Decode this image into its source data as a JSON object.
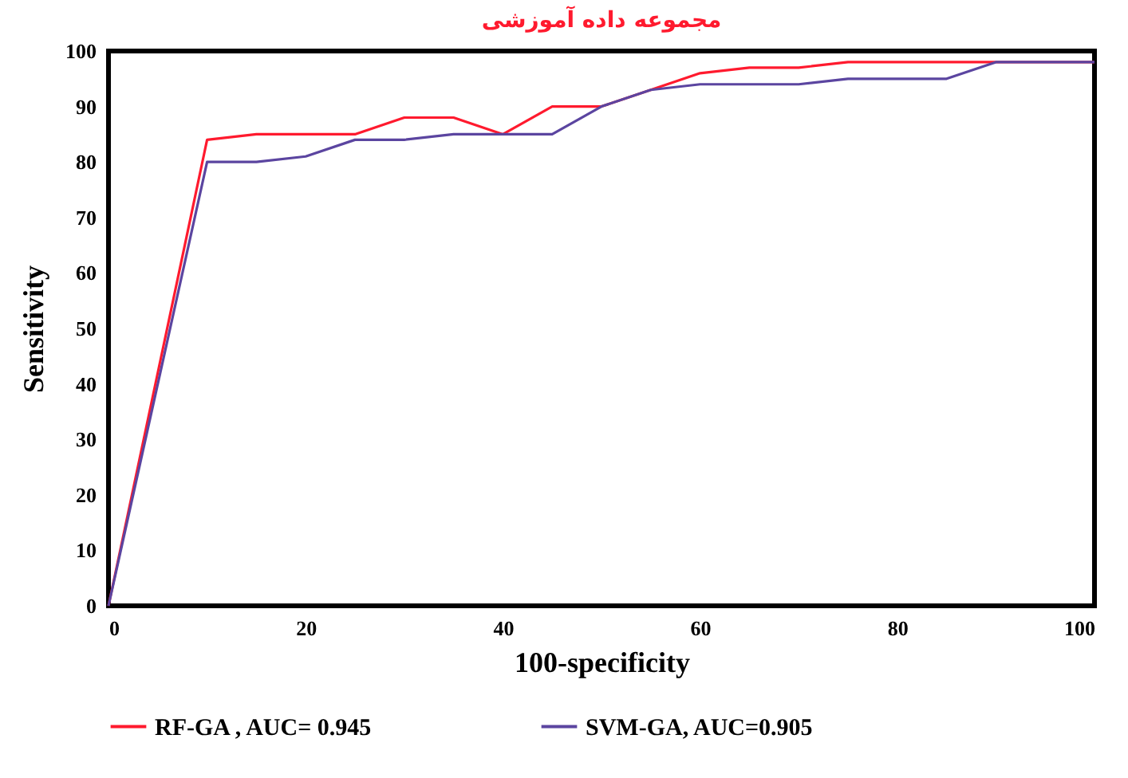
{
  "chart_data": {
    "type": "line",
    "title": "مجموعه داده آموزشی",
    "xlabel": "100-specificity",
    "ylabel": "Sensitivity",
    "x": [
      0,
      10,
      15,
      20,
      25,
      30,
      35,
      40,
      45,
      50,
      55,
      60,
      65,
      70,
      75,
      80,
      85,
      90,
      95,
      100
    ],
    "series": [
      {
        "name": "RF-GA , AUC= 0.945",
        "color": "#ff1a2e",
        "values": [
          0,
          84,
          85,
          85,
          85,
          88,
          88,
          85,
          90,
          90,
          93,
          96,
          97,
          97,
          98,
          98,
          98,
          98,
          98,
          98
        ]
      },
      {
        "name": "SVM-GA, AUC=0.905",
        "color": "#5b45a0",
        "values": [
          0,
          80,
          80,
          81,
          84,
          84,
          85,
          85,
          85,
          90,
          93,
          94,
          94,
          94,
          95,
          95,
          95,
          98,
          98,
          98
        ]
      }
    ],
    "xlim": [
      0,
      100
    ],
    "xticks": [
      0,
      20,
      40,
      60,
      80,
      100
    ],
    "ylim": [
      0,
      100
    ],
    "yticks": [
      0,
      10,
      20,
      30,
      40,
      50,
      60,
      70,
      80,
      90,
      100
    ],
    "grid": false,
    "legend": "bottom",
    "marker": "none",
    "line_style": "solid"
  }
}
